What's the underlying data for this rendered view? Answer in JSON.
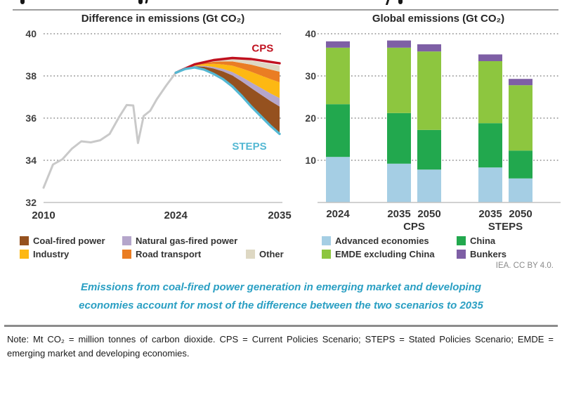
{
  "header": {
    "license": "IEA. CC BY 4.0."
  },
  "caption": {
    "line1": "Emissions from coal-fired power generation in emerging market and developing",
    "line2": "economies account for most of the difference between the two scenarios to 2035"
  },
  "footer": {
    "note": "Note: Mt CO₂ = million tonnes of carbon dioxide. CPS = Current Policies Scenario; STEPS = Stated Policies Scenario; EMDE = emerging market and developing economies."
  },
  "chart_data": [
    {
      "type": "line",
      "title": "Difference in emissions (Gt CO₂)",
      "ylim": [
        32,
        40
      ],
      "yticks": [
        40,
        38,
        36,
        34,
        32
      ],
      "xlim": [
        2010,
        2035
      ],
      "xticks": [
        2010,
        2024,
        2035
      ],
      "grid": "horizontal dotted",
      "history": {
        "name": "Historical emissions",
        "color": "#c9c9c9",
        "x": [
          2010,
          2011,
          2012,
          2013,
          2014,
          2015,
          2016,
          2017,
          2018,
          2018.8,
          2019.5,
          2020,
          2020.6,
          2021.3,
          2022,
          2023,
          2024
        ],
        "y": [
          32.7,
          33.8,
          34.05,
          34.55,
          34.9,
          34.85,
          34.95,
          35.25,
          36.05,
          36.62,
          36.6,
          34.82,
          36.1,
          36.35,
          36.9,
          37.55,
          38.15
        ]
      },
      "scenarios": [
        {
          "name": "CPS",
          "color": "#c0111f",
          "x": [
            2024,
            2026,
            2028,
            2030,
            2032,
            2035
          ],
          "y": [
            38.15,
            38.55,
            38.75,
            38.85,
            38.8,
            38.6
          ]
        },
        {
          "name": "STEPS",
          "color": "#54b8d3",
          "x": [
            2024,
            2025,
            2026,
            2027,
            2028,
            2029,
            2030,
            2031,
            2032,
            2033,
            2034,
            2035
          ],
          "y": [
            38.15,
            38.33,
            38.4,
            38.3,
            38.1,
            37.85,
            37.5,
            37.05,
            36.55,
            36.1,
            35.65,
            35.25
          ]
        }
      ],
      "wedge_breakdown_top_values_at_2035": [
        {
          "name": "Coal-fired power",
          "color": "#95511f",
          "top": 36.55
        },
        {
          "name": "Natural gas-fired power",
          "color": "#b5a6cb",
          "top": 36.95
        },
        {
          "name": "Industry",
          "color": "#fdb813",
          "top": 37.7
        },
        {
          "name": "Road transport",
          "color": "#ea7d23",
          "top": 38.2
        },
        {
          "name": "Other",
          "color": "#ded8c3",
          "top": 38.5
        }
      ],
      "annotations": [
        {
          "text": "CPS",
          "color": "#c0111f",
          "x": 2033.2,
          "y": 39.15
        },
        {
          "text": "STEPS",
          "color": "#54b8d3",
          "x": 2031.8,
          "y": 34.5
        }
      ],
      "legend_rows": [
        [
          {
            "label": "Coal-fired power",
            "color": "#95511f"
          },
          {
            "label": "Natural gas-fired power",
            "color": "#b5a6cb"
          }
        ],
        [
          {
            "label": "Industry",
            "color": "#fdb813"
          },
          {
            "label": "Road transport",
            "color": "#ea7d23"
          },
          {
            "label": "Other",
            "color": "#ded8c3"
          }
        ]
      ]
    },
    {
      "type": "stacked_bar",
      "title": "Global emissions (Gt CO₂)",
      "ylim": [
        0,
        40
      ],
      "yticks": [
        40,
        30,
        20,
        10
      ],
      "grid": "horizontal dotted",
      "categories": [
        "2024",
        "2035",
        "2050",
        "2035",
        "2050"
      ],
      "group_labels": [
        "CPS",
        "STEPS"
      ],
      "series": [
        {
          "name": "Advanced economies",
          "color": "#a5cee4",
          "values": [
            10.8,
            9.2,
            7.8,
            8.3,
            5.7
          ]
        },
        {
          "name": "China",
          "color": "#22a84e",
          "values": [
            12.5,
            12.0,
            9.4,
            10.5,
            6.6
          ]
        },
        {
          "name": "EMDE excluding China",
          "color": "#8dc63f",
          "values": [
            13.4,
            15.5,
            18.6,
            14.7,
            15.5
          ]
        },
        {
          "name": "Bunkers",
          "color": "#7e5fa5",
          "values": [
            1.5,
            1.7,
            1.7,
            1.6,
            1.5
          ]
        }
      ],
      "totals": [
        38.2,
        38.4,
        37.5,
        35.1,
        29.3
      ],
      "legend_rows": [
        [
          {
            "label": "Advanced economies",
            "color": "#a5cee4"
          },
          {
            "label": "China",
            "color": "#22a84e"
          }
        ],
        [
          {
            "label": "EMDE excluding China",
            "color": "#8dc63f"
          },
          {
            "label": "Bunkers",
            "color": "#7e5fa5"
          }
        ]
      ]
    }
  ]
}
